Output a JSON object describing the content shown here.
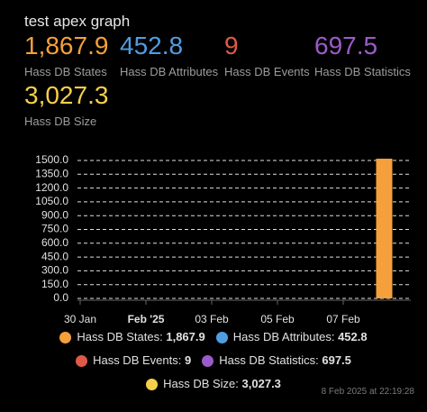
{
  "chart_data": {
    "type": "bar",
    "title": "test apex graph",
    "x": [
      "2025-02-08"
    ],
    "series": [
      {
        "name": "Hass DB States",
        "color": "#f5a03c",
        "values": [
          1867.9
        ],
        "value_labels": [
          "1,867.9"
        ]
      },
      {
        "name": "Hass DB Attributes",
        "color": "#4f9de0",
        "values": [
          452.8
        ],
        "value_labels": [
          "452.8"
        ]
      },
      {
        "name": "Hass DB Events",
        "color": "#df5a46",
        "values": [
          9
        ],
        "value_labels": [
          "9"
        ]
      },
      {
        "name": "Hass DB Statistics",
        "color": "#9b5bc9",
        "values": [
          697.5
        ],
        "value_labels": [
          "697.5"
        ]
      },
      {
        "name": "Hass DB Size",
        "color": "#f5cf4b",
        "values": [
          3027.3
        ],
        "value_labels": [
          "3,027.3"
        ]
      }
    ],
    "xlim": [
      "2025-01-30",
      "2025-02-09"
    ],
    "xticks": [
      {
        "value": "2025-01-30",
        "label": "30 Jan"
      },
      {
        "value": "2025-02-01",
        "label": "Feb '25"
      },
      {
        "value": "2025-02-03",
        "label": "03 Feb"
      },
      {
        "value": "2025-02-05",
        "label": "05 Feb"
      },
      {
        "value": "2025-02-07",
        "label": "07 Feb"
      }
    ],
    "ylim": [
      0,
      1500
    ],
    "yticks": [
      {
        "value": 0,
        "label": "0.0"
      },
      {
        "value": 150,
        "label": "150.0"
      },
      {
        "value": 300,
        "label": "300.0"
      },
      {
        "value": 450,
        "label": "450.0"
      },
      {
        "value": 600,
        "label": "600.0"
      },
      {
        "value": 750,
        "label": "750.0"
      },
      {
        "value": 900,
        "label": "900.0"
      },
      {
        "value": 1050,
        "label": "1050.0"
      },
      {
        "value": 1200,
        "label": "1200.0"
      },
      {
        "value": 1350,
        "label": "1350.0"
      },
      {
        "value": 1500,
        "label": "1500.0"
      }
    ],
    "grid": true,
    "last_updated": "8 Feb 2025 at 22:19:28"
  }
}
